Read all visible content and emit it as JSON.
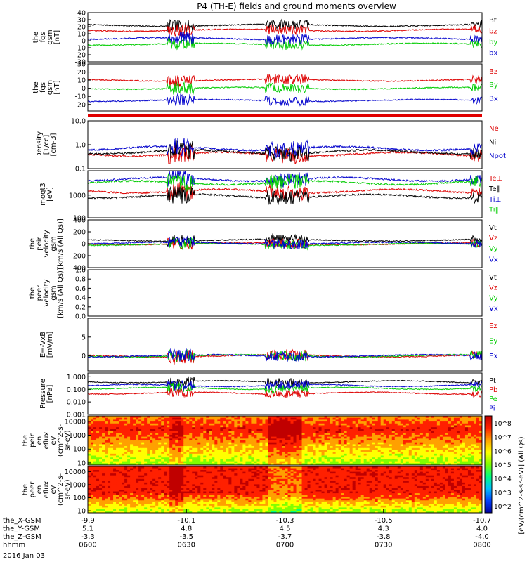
{
  "title": "P4 (TH-E) fields and ground moments overview",
  "date_label": "2016 Jan 03",
  "chart_data": {
    "type": "line",
    "x_axis": {
      "time_ticks": [
        "0600",
        "0630",
        "0700",
        "0730",
        "0800"
      ],
      "ephemeris": [
        {
          "label": "the_X-GSM",
          "values": [
            "-9.9",
            "-10.1",
            "-10.3",
            "-10.5",
            "-10.7"
          ]
        },
        {
          "label": "the_Y-GSM",
          "values": [
            "5.1",
            "4.8",
            "4.5",
            "4.3",
            "4.0"
          ]
        },
        {
          "label": "the_Z-GSM",
          "values": [
            "-3.3",
            "-3.5",
            "-3.7",
            "-3.8",
            "-4.0"
          ]
        },
        {
          "label": "hhmm",
          "values": [
            "0600",
            "0630",
            "0700",
            "0730",
            "0800"
          ]
        }
      ]
    },
    "panels": [
      {
        "id": "fgs_gsm",
        "ylabel": "the\nfgs\ngsm\n[nT]",
        "ylim": [
          -30,
          40
        ],
        "ticks": [
          [
            "40",
            40
          ],
          [
            "30",
            30
          ],
          [
            "20",
            20
          ],
          [
            "10",
            10
          ],
          [
            "0",
            0
          ],
          [
            "-10",
            -10
          ],
          [
            "-20",
            -20
          ],
          [
            "-30",
            -30
          ]
        ],
        "series": [
          {
            "name": "Bt",
            "color": "#000000",
            "level": 22
          },
          {
            "name": "bz",
            "color": "#dd0000",
            "level": 15
          },
          {
            "name": "by",
            "color": "#00cc00",
            "level": -5
          },
          {
            "name": "bx",
            "color": "#0000cc",
            "level": 3
          }
        ]
      },
      {
        "id": "fgs_dsl",
        "ylabel": "the\nfgs\ngsm\n[nT]",
        "ylim": [
          -28,
          30
        ],
        "ticks": [
          [
            "30",
            30
          ],
          [
            "20",
            20
          ],
          [
            "10",
            10
          ],
          [
            "0",
            0
          ],
          [
            "-10",
            -10
          ],
          [
            "-20",
            -20
          ]
        ],
        "series": [
          {
            "name": "Bz",
            "color": "#dd0000",
            "level": 10
          },
          {
            "name": "By",
            "color": "#00cc00",
            "level": 0
          },
          {
            "name": "Bx",
            "color": "#0000cc",
            "level": -15
          }
        ]
      },
      {
        "id": "density",
        "ylabel": "Density\n[1/cc]\n[cm-3]",
        "ylim": [
          0.1,
          10
        ],
        "log": true,
        "ticks": [
          [
            "10.0",
            10
          ],
          [
            "1.0",
            1
          ],
          [
            "0.1",
            0.1
          ]
        ],
        "series": [
          {
            "name": "Ne",
            "color": "#dd0000",
            "level": 0.4
          },
          {
            "name": "Ni",
            "color": "#000000",
            "level": 0.5
          },
          {
            "name": "Npot",
            "color": "#0000cc",
            "level": 0.7
          }
        ]
      },
      {
        "id": "temperature",
        "ylabel": "moqt3\n[eV]",
        "ylim": [
          100,
          12000
        ],
        "log": true,
        "ticks": [
          [
            "1000",
            1000
          ],
          [
            "100",
            100
          ]
        ],
        "series": [
          {
            "name": "Te⊥",
            "color": "#dd0000",
            "level": 1500
          },
          {
            "name": "Te‖",
            "color": "#000000",
            "level": 900
          },
          {
            "name": "Ti⊥",
            "color": "#0000cc",
            "level": 5000
          },
          {
            "name": "Ti‖",
            "color": "#00cc00",
            "level": 3500
          }
        ]
      },
      {
        "id": "peir_velocity",
        "ylabel": "the\npeir\nvelocity\ngsm\n[km/s (All Qs)]",
        "ylim": [
          -400,
          400
        ],
        "ticks": [
          [
            "400",
            400
          ],
          [
            "200",
            200
          ],
          [
            "0",
            0
          ],
          [
            "-200",
            -200
          ],
          [
            "-400",
            -400
          ]
        ],
        "series": [
          {
            "name": "Vt",
            "color": "#000000",
            "level": 60
          },
          {
            "name": "Vz",
            "color": "#dd0000",
            "level": 0
          },
          {
            "name": "Vy",
            "color": "#00cc00",
            "level": -10
          },
          {
            "name": "Vx",
            "color": "#0000cc",
            "level": 10
          }
        ]
      },
      {
        "id": "peer_velocity",
        "ylabel": "the\npeer\nvelocity\ngsm\n[km/s (All Qs)]",
        "ylim": [
          0,
          1
        ],
        "ticks": [
          [
            "1.0",
            1
          ],
          [
            "0.8",
            0.8
          ],
          [
            "0.6",
            0.6
          ],
          [
            "0.4",
            0.4
          ],
          [
            "0.2",
            0.2
          ],
          [
            "0.0",
            0
          ]
        ],
        "series": [
          {
            "name": "Vt",
            "color": "#000000",
            "level": null
          },
          {
            "name": "Vz",
            "color": "#dd0000",
            "level": null
          },
          {
            "name": "Vy",
            "color": "#00cc00",
            "level": null
          },
          {
            "name": "Vx",
            "color": "#0000cc",
            "level": null
          }
        ]
      },
      {
        "id": "efield",
        "ylabel": "E=-VxB\n[mV/m]",
        "ylim": [
          -4,
          10
        ],
        "ticks": [
          [
            "5",
            5
          ],
          [
            "0",
            0
          ]
        ],
        "series": [
          {
            "name": "Ez",
            "color": "#dd0000",
            "level": 0
          },
          {
            "name": "Ey",
            "color": "#00cc00",
            "level": 0
          },
          {
            "name": "Ex",
            "color": "#0000cc",
            "level": 0
          }
        ]
      },
      {
        "id": "pressure",
        "ylabel": "Pressure\n[nPa]",
        "ylim": [
          0.001,
          2
        ],
        "log": true,
        "ticks": [
          [
            "1.000",
            1
          ],
          [
            "0.100",
            0.1
          ],
          [
            "0.010",
            0.01
          ],
          [
            "0.001",
            0.001
          ]
        ],
        "series": [
          {
            "name": "Pt",
            "color": "#000000",
            "level": 0.4
          },
          {
            "name": "Pb",
            "color": "#dd0000",
            "level": 0.05
          },
          {
            "name": "Pe",
            "color": "#00cc00",
            "level": 0.12
          },
          {
            "name": "Pi",
            "color": "#0000cc",
            "level": 0.2
          }
        ]
      },
      {
        "id": "peir_spectrogram",
        "type": "heatmap",
        "ylabel": "the\npeir\nen\neflux\neV\n(cm^2-s-\nsr-eV)",
        "ylim": [
          7,
          25000
        ],
        "log": true,
        "ticks": [
          [
            "10000",
            10000
          ],
          [
            "1000",
            1000
          ],
          [
            "100",
            100
          ],
          [
            "10",
            10
          ]
        ]
      },
      {
        "id": "peer_spectrogram",
        "type": "heatmap",
        "ylabel": "the\npeer\nen\neflux\neV\n(cm^2-s-\nsr-eV)",
        "ylim": [
          7,
          25000
        ],
        "log": true,
        "ticks": [
          [
            "10000",
            10000
          ],
          [
            "1000",
            1000
          ],
          [
            "100",
            100
          ],
          [
            "10",
            10
          ]
        ]
      }
    ],
    "colorbar": {
      "label": "[eV/(cm^2-s-sr-eV)] (All Qs)",
      "ticks": [
        "10^8",
        "10^7",
        "10^6",
        "10^5",
        "10^4",
        "10^3",
        "10^2"
      ],
      "colors": [
        "#0000a0",
        "#0040ff",
        "#00c0ff",
        "#00ff80",
        "#80ff00",
        "#ffff00",
        "#ffa000",
        "#ff2000",
        "#c00000"
      ]
    }
  }
}
